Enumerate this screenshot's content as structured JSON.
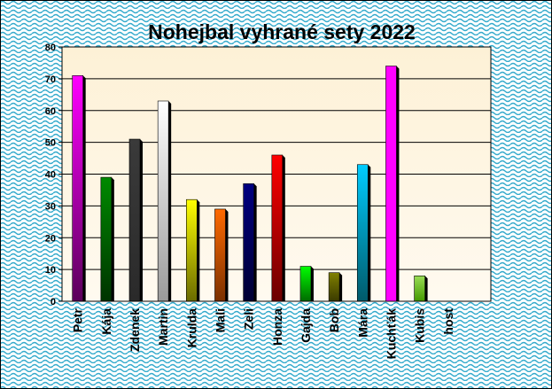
{
  "chart_data": {
    "type": "bar",
    "title": "Nohejbal vyhrané sety 2022",
    "xlabel": "",
    "ylabel": "",
    "ylim": [
      0,
      80
    ],
    "y_ticks": [
      0,
      10,
      20,
      30,
      40,
      50,
      60,
      70,
      80
    ],
    "grid": true,
    "legend": "none",
    "categories": [
      "Petr",
      "Kája",
      "Zdenek",
      "Martin",
      "Krulda",
      "Mali",
      "Zeli",
      "Honza",
      "Gajda",
      "Bob",
      "Mára",
      "Kuchťák",
      "Kubis",
      "host"
    ],
    "values": [
      71,
      39,
      51,
      63,
      32,
      29,
      37,
      46,
      11,
      9,
      43,
      74,
      8,
      0
    ],
    "bar_colors": [
      {
        "top": "#ff00ff",
        "bottom": "#5a005a",
        "side": "#000000"
      },
      {
        "top": "#008a00",
        "bottom": "#003300",
        "side": "#000000"
      },
      {
        "top": "#3a3a3a",
        "bottom": "#2a2a2a",
        "side": "#000000"
      },
      {
        "top": "#ffffff",
        "bottom": "#9a9a9a",
        "side": "#000000"
      },
      {
        "top": "#ffff00",
        "bottom": "#6a6a00",
        "side": "#000000"
      },
      {
        "top": "#ff6a00",
        "bottom": "#7a3000",
        "side": "#000000"
      },
      {
        "top": "#000080",
        "bottom": "#000033",
        "side": "#000000"
      },
      {
        "top": "#ff0000",
        "bottom": "#6a0000",
        "side": "#000000"
      },
      {
        "top": "#00ff00",
        "bottom": "#006a00",
        "side": "#000000"
      },
      {
        "top": "#808000",
        "bottom": "#3a3a00",
        "side": "#000000"
      },
      {
        "top": "#00ccff",
        "bottom": "#005a6a",
        "side": "#000000"
      },
      {
        "top": "#ff00ff",
        "bottom": "#ff00ff",
        "side": "#000000"
      },
      {
        "top": "#99dd55",
        "bottom": "#449900",
        "side": "#000000"
      },
      {
        "top": "#cccccc",
        "bottom": "#cccccc",
        "side": "#000000"
      }
    ],
    "colors": {
      "background_pattern": "#33aacc",
      "background": "#ffffff",
      "plot_area": "#fdf3dc",
      "gridline": "#000000",
      "text": "#000000"
    }
  }
}
